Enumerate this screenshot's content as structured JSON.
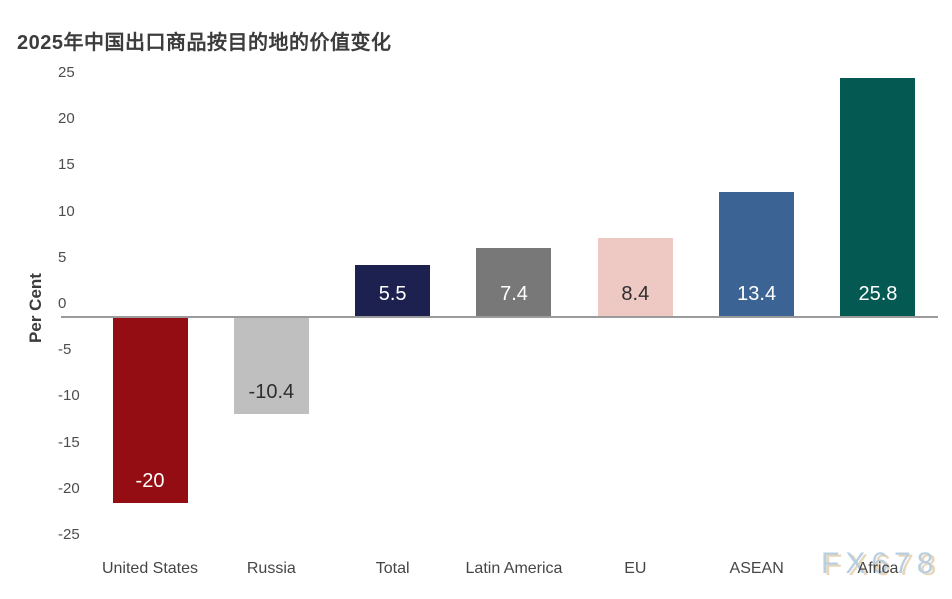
{
  "title": "2025年中国出口商品按目的地的价值变化",
  "watermark": "FX678",
  "chart_data": {
    "type": "bar",
    "title": "2025年中国出口商品按目的地的价值变化",
    "xlabel": "",
    "ylabel": "Per Cent",
    "ylim": [
      -25,
      25
    ],
    "yticks": [
      25,
      20,
      15,
      10,
      5,
      0,
      -5,
      -10,
      -15,
      -20,
      -25
    ],
    "grid": false,
    "legend": "none",
    "categories": [
      "United States",
      "Russia",
      "Total",
      "Latin America",
      "EU",
      "ASEAN",
      "Africa"
    ],
    "values": [
      -20,
      -10.4,
      5.5,
      7.4,
      8.4,
      13.4,
      25.8
    ],
    "bar_labels": [
      "-20",
      "-10.4",
      "5.5",
      "7.4",
      "8.4",
      "13.4",
      "25.8"
    ],
    "bar_colors": [
      "#930d12",
      "#bfbfbf",
      "#1c2150",
      "#787878",
      "#eec8c3",
      "#3b6394",
      "#045a53"
    ],
    "bar_label_colors": [
      "#ffffff",
      "#2e2e2e",
      "#ffffff",
      "#ffffff",
      "#2e2e2e",
      "#ffffff",
      "#ffffff"
    ]
  },
  "colors": {
    "background": "#ffffff",
    "title_text": "#3c3c3c",
    "axis_text": "#4d4d4d",
    "zero_line": "#9b9b9b",
    "watermark_fill": "#b8cfe2",
    "watermark_shadow": "#e8d6ba"
  }
}
